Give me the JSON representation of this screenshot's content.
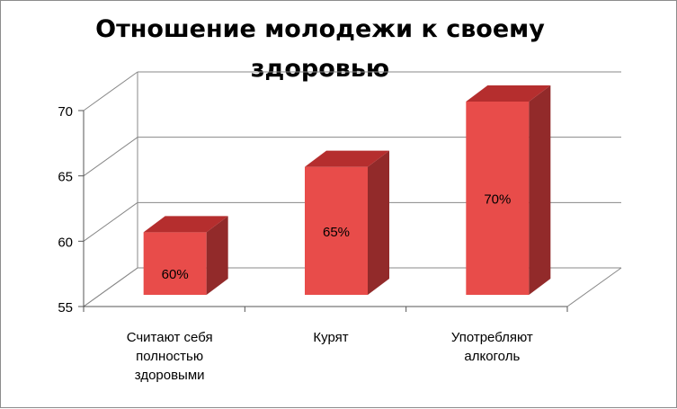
{
  "chart_data": {
    "type": "bar",
    "title": "Отношение молодежи к своему здоровью",
    "categories": [
      "Считают себя полностью здоровыми",
      "Курят",
      "Употребляют алкоголь"
    ],
    "category_lines": [
      [
        "Считают себя",
        "полностью",
        "здоровыми"
      ],
      [
        "Курят"
      ],
      [
        "Употребляют",
        "алкоголь"
      ]
    ],
    "values": [
      60,
      65,
      70
    ],
    "data_labels": [
      "60%",
      "65%",
      "70%"
    ],
    "yticks": [
      "55",
      "60",
      "65",
      "70"
    ],
    "ylim": [
      55,
      70
    ],
    "grid": true,
    "legend": "none",
    "colors": {
      "front": "#e84c4a",
      "side": "#922a2a",
      "top": "#b52e2e",
      "wall": "#888888"
    }
  }
}
